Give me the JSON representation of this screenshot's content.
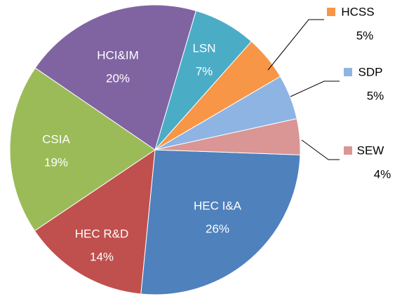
{
  "chart_data": {
    "type": "pie",
    "categories": [
      "HEC I&A",
      "HEC R&D",
      "CSIA",
      "HCI&IM",
      "LSN",
      "HCSS",
      "SDP",
      "SEW"
    ],
    "values": [
      26,
      14,
      19,
      20,
      7,
      5,
      5,
      4
    ],
    "value_labels": [
      "26%",
      "14%",
      "19%",
      "20%",
      "7%",
      "5%",
      "5%",
      "4%"
    ],
    "colors": [
      "#4f81bd",
      "#c0504d",
      "#9bbb59",
      "#8064a2",
      "#4bacc6",
      "#f79646",
      "#8eb4e3",
      "#d99694"
    ]
  }
}
